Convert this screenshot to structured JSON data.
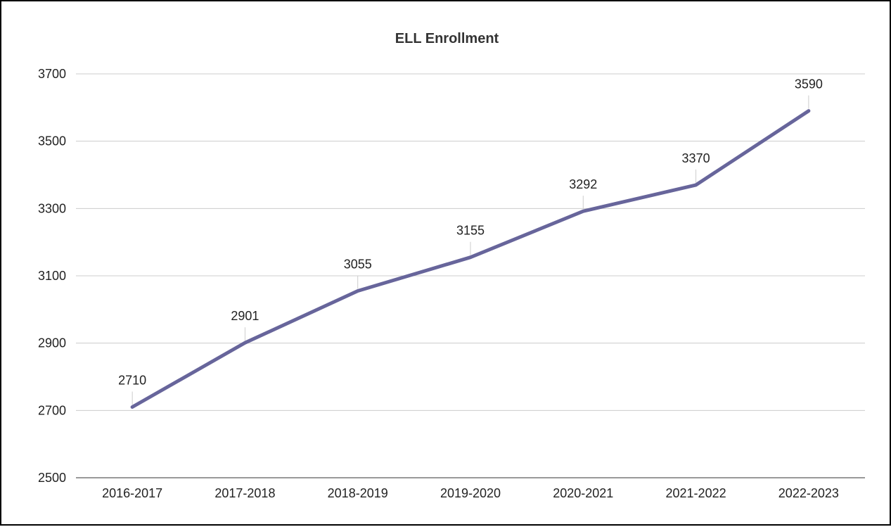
{
  "chart_data": {
    "type": "line",
    "title": "ELL Enrollment",
    "xlabel": "",
    "ylabel": "",
    "categories": [
      "2016-2017",
      "2017-2018",
      "2018-2019",
      "2019-2020",
      "2020-2021",
      "2021-2022",
      "2022-2023"
    ],
    "series": [
      {
        "values": [
          2710,
          2901,
          3055,
          3155,
          3292,
          3370,
          3590
        ],
        "color": "#67659b"
      }
    ],
    "ylim": [
      2500,
      3700
    ],
    "yticks": [
      2500,
      2700,
      2900,
      3100,
      3300,
      3500,
      3700
    ],
    "grid": true,
    "data_labels": true,
    "legend": "none"
  }
}
